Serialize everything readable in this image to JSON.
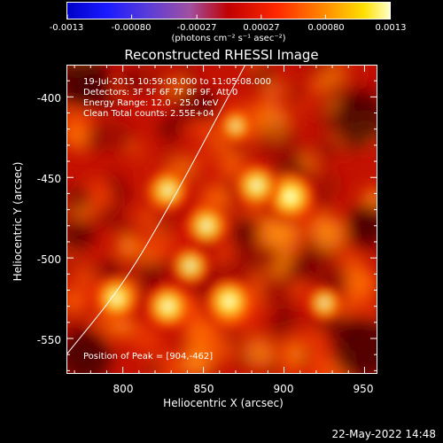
{
  "colorbar": {
    "tick_labels": [
      "-0.0013",
      "-0.00080",
      "-0.00027",
      "0.00027",
      "0.00080",
      "0.0013"
    ],
    "unit_label": "(photons cm⁻² s⁻¹ asec⁻²)",
    "range": [
      -0.0013,
      0.0013
    ]
  },
  "plot": {
    "title": "Reconstructed RHESSI Image",
    "info_lines": [
      "19-Jul-2015 10:59:08.000 to 11:05:08.000",
      "Detectors: 3F 5F 6F 7F 8F 9F, Att 0",
      "Energy Range: 12.0 - 25.0 keV",
      "Clean     Total counts: 2.55E+04"
    ],
    "peak_label": "Position of Peak = [904,-462]"
  },
  "footer": {
    "timestamp": "22-May-2022 14:48"
  },
  "chart_data": {
    "type": "heatmap",
    "title": "Reconstructed RHESSI Image",
    "xlabel": "Heliocentric X (arcsec)",
    "ylabel": "Heliocentric Y (arcsec)",
    "xlim": [
      765,
      958
    ],
    "ylim": [
      -572,
      -380
    ],
    "x_ticks": [
      800,
      850,
      900,
      950
    ],
    "y_ticks": [
      -400,
      -450,
      -500,
      -550
    ],
    "colorscale": "red-temperature",
    "peak": [
      904,
      -462
    ],
    "bright_sources": [
      {
        "x": 904,
        "y": -462,
        "level": 1.0
      },
      {
        "x": 883,
        "y": -455,
        "level": 0.85
      },
      {
        "x": 866,
        "y": -527,
        "level": 0.95
      },
      {
        "x": 828,
        "y": -530,
        "level": 0.9
      },
      {
        "x": 796,
        "y": -525,
        "level": 0.85
      },
      {
        "x": 852,
        "y": -480,
        "level": 0.8
      },
      {
        "x": 828,
        "y": -458,
        "level": 0.75
      },
      {
        "x": 842,
        "y": -505,
        "level": 0.7
      },
      {
        "x": 925,
        "y": -528,
        "level": 0.55
      },
      {
        "x": 870,
        "y": -418,
        "level": 0.45
      }
    ],
    "limb_curve": [
      [
        765,
        -560
      ],
      [
        800,
        -517
      ],
      [
        830,
        -466
      ],
      [
        860,
        -410
      ],
      [
        876,
        -380
      ]
    ]
  }
}
